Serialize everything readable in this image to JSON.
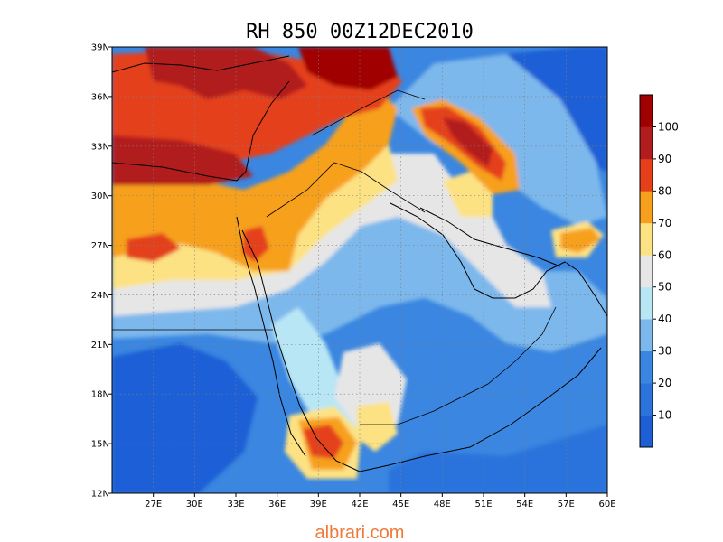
{
  "title": "RH 850 00Z12DEC2010",
  "watermark": "albrari.com",
  "colors": {
    "watermark": "#f07838",
    "border": "#000000",
    "gridline": "#7f7f7f"
  },
  "map": {
    "projection": "lat-lon",
    "lon_range": [
      24,
      60
    ],
    "lat_range": [
      12,
      39
    ],
    "base_color": "#3a86e0",
    "x_ticks": [
      "27E",
      "30E",
      "33E",
      "36E",
      "39E",
      "42E",
      "45E",
      "48E",
      "51E",
      "54E",
      "57E",
      "60E"
    ],
    "y_ticks": [
      "15N",
      "18N",
      "21N",
      "24N",
      "27N",
      "30N",
      "33N",
      "36N",
      "39N"
    ],
    "grid": "dotted"
  },
  "chart_data": {
    "type": "heatmap",
    "variable": "RH",
    "level": "850",
    "time": "00Z12DEC2010",
    "x_tick_labels": [
      "27E",
      "30E",
      "33E",
      "36E",
      "39E",
      "42E",
      "45E",
      "48E",
      "51E",
      "54E",
      "57E",
      "60E"
    ],
    "y_tick_labels": [
      "12N",
      "15N",
      "18N",
      "21N",
      "24N",
      "27N",
      "30N",
      "33N",
      "36N",
      "39N"
    ],
    "colorbar": {
      "levels": [
        10,
        20,
        30,
        40,
        50,
        60,
        70,
        80,
        90,
        100
      ],
      "colors": [
        "#1e5fd6",
        "#2c73dc",
        "#3a86e0",
        "#7db8ec",
        "#b8e6f4",
        "#e6e6e6",
        "#fde283",
        "#f7a01e",
        "#e5401a",
        "#b11c1c",
        "#a00000"
      ]
    },
    "regions": [
      {
        "name": "low-rh-sw",
        "level": 20,
        "lon": [
          24,
          32
        ],
        "lat": [
          12,
          21
        ]
      },
      {
        "name": "high-rh-nw",
        "level": 90,
        "lon": [
          24,
          36
        ],
        "lat": [
          30,
          39
        ]
      },
      {
        "name": "high-rh-ne",
        "level": 100,
        "lon": [
          34,
          44
        ],
        "lat": [
          35,
          39
        ]
      },
      {
        "name": "zagros-band",
        "level": 90,
        "lon": [
          46,
          51
        ],
        "lat": [
          30,
          35
        ]
      },
      {
        "name": "yemen-high",
        "level": 90,
        "lon": [
          38,
          41
        ],
        "lat": [
          13,
          16
        ]
      }
    ]
  }
}
